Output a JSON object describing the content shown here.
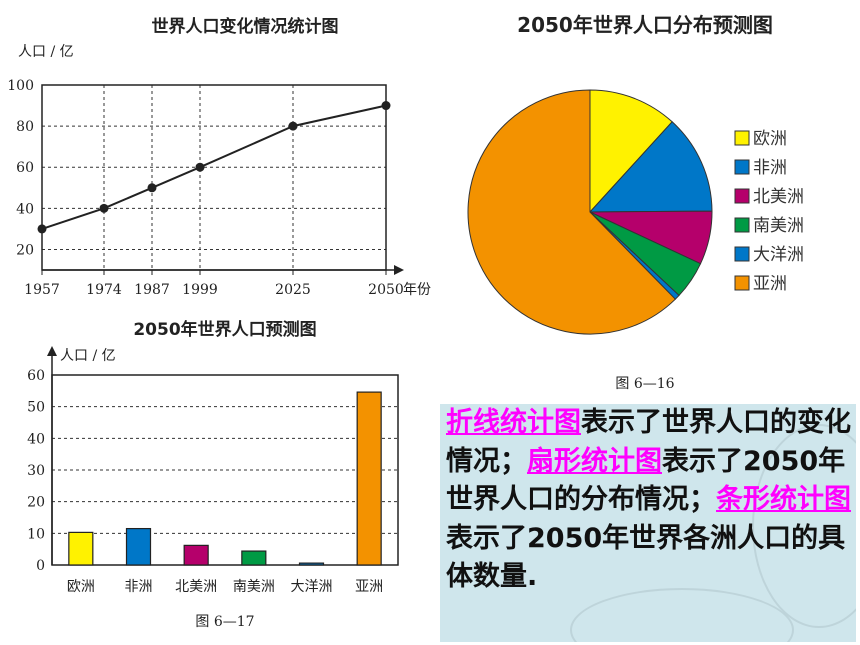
{
  "chart_data": [
    {
      "type": "line",
      "title": "世界人口变化情况统计图",
      "ylabel": "人口 / 亿",
      "xlabel": "年份",
      "x": [
        "1957",
        "1974",
        "1987",
        "1999",
        "2025",
        "2050"
      ],
      "values": [
        30,
        40,
        50,
        60,
        80,
        90
      ],
      "yticks": [
        20,
        40,
        60,
        80,
        100
      ],
      "ylim": [
        10,
        100
      ],
      "grid": true
    },
    {
      "type": "pie",
      "title": "2050年世界人口分布预测图",
      "labels": [
        "欧洲",
        "非洲",
        "北美洲",
        "南美洲",
        "大洋洲",
        "亚洲"
      ],
      "values": [
        10.3,
        11.5,
        6.2,
        4.4,
        0.6,
        54.6
      ],
      "colors": [
        "#fff200",
        "#0077c8",
        "#b5006b",
        "#009a44",
        "#0077c8",
        "#f39200"
      ],
      "caption": "图 6—16",
      "legend": "right"
    },
    {
      "type": "bar",
      "title": "2050年世界人口预测图",
      "ylabel": "人口 / 亿",
      "categories": [
        "欧洲",
        "非洲",
        "北美洲",
        "南美洲",
        "大洋洲",
        "亚洲"
      ],
      "values": [
        10.3,
        11.5,
        6.2,
        4.4,
        0.6,
        54.6
      ],
      "colors": [
        "#fff200",
        "#0077c8",
        "#b5006b",
        "#009a44",
        "#0077c8",
        "#f39200"
      ],
      "yticks": [
        0,
        10,
        20,
        30,
        40,
        50,
        60
      ],
      "ylim": [
        0,
        60
      ],
      "caption": "图 6—17",
      "grid": true
    }
  ],
  "description": {
    "segments": [
      {
        "text": "折线统计图",
        "highlight": true
      },
      {
        "text": "表示了世界人口的变化情况；",
        "highlight": false
      },
      {
        "text": "扇形统计图",
        "highlight": true
      },
      {
        "text": "表示了2050年世界人口的分布情况；",
        "highlight": false
      },
      {
        "text": "条形统计图",
        "highlight": true
      },
      {
        "text": "表示了2050年世界各洲人口的具体数量.",
        "highlight": false
      }
    ]
  }
}
